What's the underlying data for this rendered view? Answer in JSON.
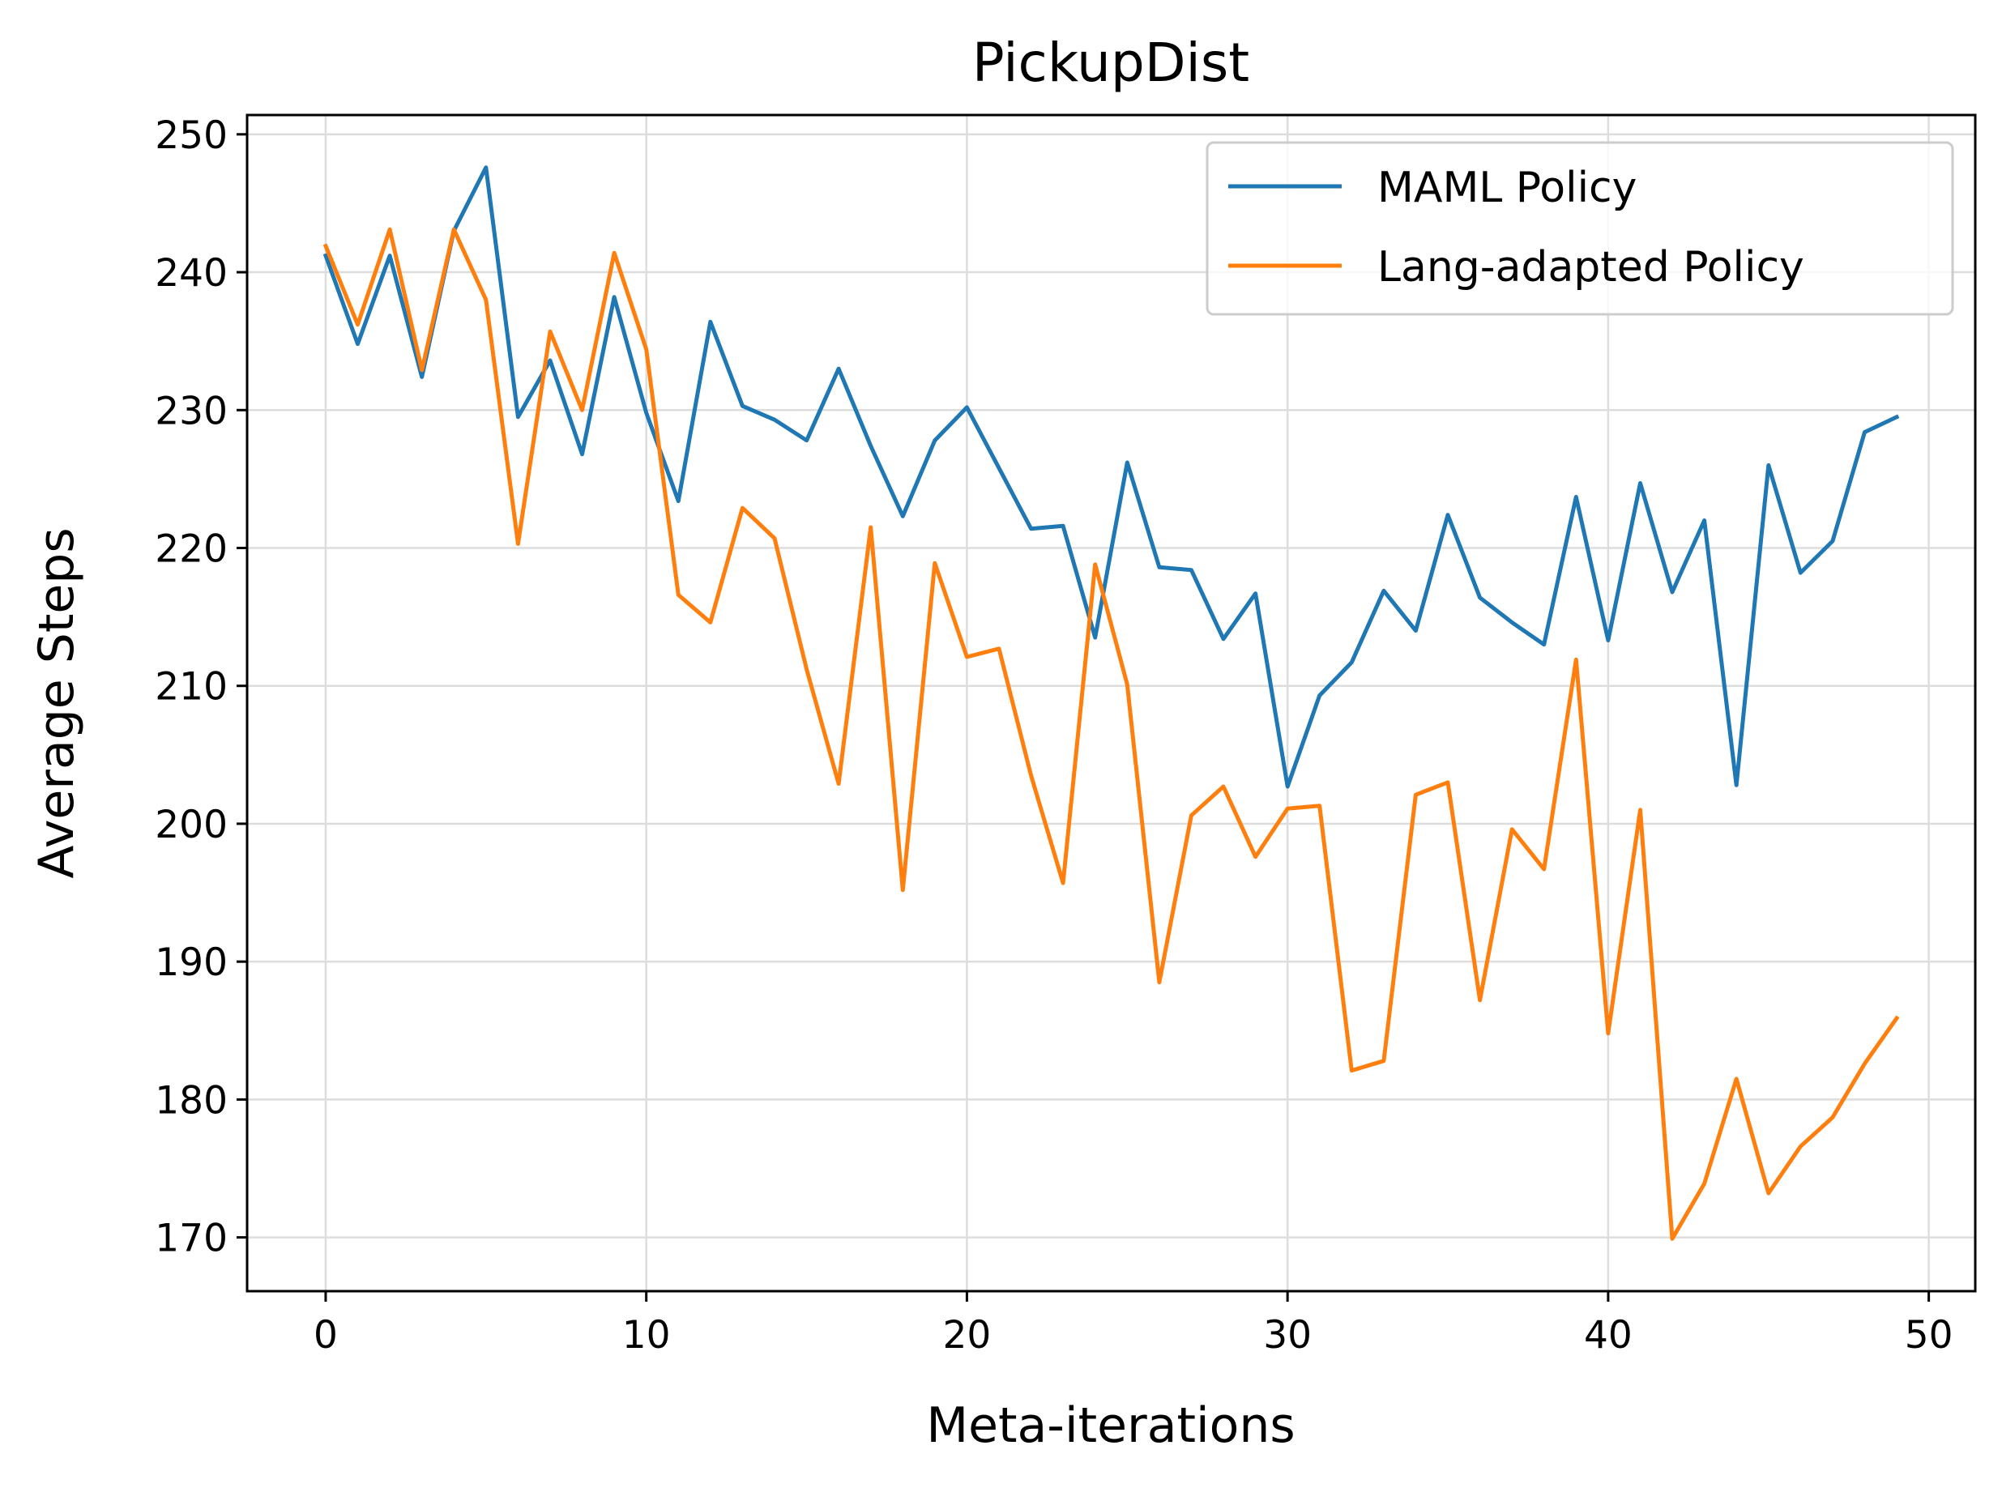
{
  "chart_data": {
    "type": "line",
    "title": "PickupDist",
    "xlabel": "Meta-iterations",
    "ylabel": "Average Steps",
    "xlim": [
      -2.45,
      51.45
    ],
    "ylim": [
      166.1,
      251.4
    ],
    "xticks": [
      0,
      10,
      20,
      30,
      40,
      50
    ],
    "yticks": [
      170,
      180,
      190,
      200,
      210,
      220,
      230,
      240,
      250
    ],
    "grid": true,
    "legend_position": "top-right",
    "x": [
      0,
      1,
      2,
      3,
      4,
      5,
      6,
      7,
      8,
      9,
      10,
      11,
      12,
      13,
      14,
      15,
      16,
      17,
      18,
      19,
      20,
      21,
      22,
      23,
      24,
      25,
      26,
      27,
      28,
      29,
      30,
      31,
      32,
      33,
      34,
      35,
      36,
      37,
      38,
      39,
      40,
      41,
      42,
      43,
      44,
      45,
      46,
      47,
      48,
      49
    ],
    "series": [
      {
        "name": "MAML Policy",
        "color": "#1f77b4",
        "values": [
          241.2,
          234.8,
          241.2,
          232.4,
          243.0,
          247.6,
          229.5,
          233.6,
          226.8,
          238.2,
          229.8,
          223.4,
          236.4,
          230.3,
          229.3,
          227.8,
          233.0,
          227.4,
          222.3,
          227.8,
          230.2,
          225.8,
          221.4,
          221.6,
          213.5,
          226.2,
          218.6,
          218.4,
          213.4,
          216.7,
          202.7,
          209.3,
          211.7,
          216.9,
          214.0,
          222.4,
          216.4,
          214.6,
          213.0,
          223.7,
          213.3,
          224.7,
          216.8,
          222.0,
          202.8,
          226.0,
          218.2,
          220.5,
          228.4,
          229.5
        ]
      },
      {
        "name": "Lang-adapted Policy",
        "color": "#ff7f0e",
        "values": [
          241.9,
          236.2,
          243.1,
          232.9,
          243.1,
          238.0,
          220.3,
          235.7,
          230.0,
          241.4,
          234.4,
          216.6,
          214.6,
          222.9,
          220.7,
          211.2,
          202.9,
          221.5,
          195.2,
          218.9,
          212.1,
          212.7,
          203.5,
          195.7,
          218.8,
          210.1,
          188.5,
          200.6,
          202.7,
          197.6,
          201.1,
          201.3,
          182.1,
          182.8,
          202.1,
          203.0,
          187.2,
          199.6,
          196.7,
          211.9,
          184.8,
          201.0,
          169.9,
          173.9,
          181.5,
          173.2,
          176.6,
          178.7,
          182.6,
          185.9
        ]
      }
    ]
  }
}
